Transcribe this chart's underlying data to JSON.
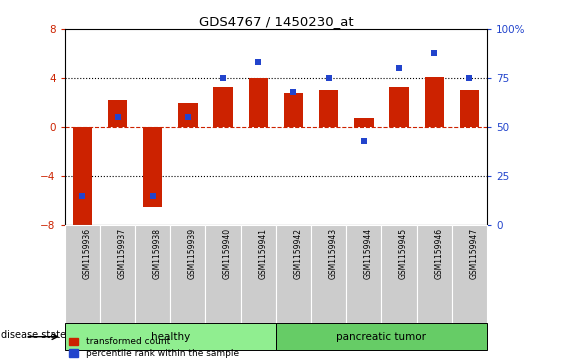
{
  "title": "GDS4767 / 1450230_at",
  "samples": [
    "GSM1159936",
    "GSM1159937",
    "GSM1159938",
    "GSM1159939",
    "GSM1159940",
    "GSM1159941",
    "GSM1159942",
    "GSM1159943",
    "GSM1159944",
    "GSM1159945",
    "GSM1159946",
    "GSM1159947"
  ],
  "red_values": [
    -8.5,
    2.2,
    -6.5,
    2.0,
    3.3,
    4.0,
    2.8,
    3.0,
    0.7,
    3.3,
    4.1,
    3.0
  ],
  "blue_values_pct": [
    15,
    55,
    15,
    55,
    75,
    83,
    68,
    75,
    43,
    80,
    88,
    75
  ],
  "groups": [
    {
      "label": "healthy",
      "start": 0,
      "end": 6,
      "color": "#90ee90"
    },
    {
      "label": "pancreatic tumor",
      "start": 6,
      "end": 12,
      "color": "#66cc66"
    }
  ],
  "ylim": [
    -8,
    8
  ],
  "y2lim": [
    0,
    100
  ],
  "y_ticks": [
    -8,
    -4,
    0,
    4,
    8
  ],
  "y2_ticks": [
    0,
    25,
    50,
    75,
    100
  ],
  "y2_tick_labels": [
    "0",
    "25",
    "50",
    "75",
    "100%"
  ],
  "red_color": "#cc2200",
  "blue_color": "#2244cc",
  "bar_width": 0.55,
  "bg_color": "#ffffff",
  "plot_bg": "#ffffff",
  "tick_label_bg": "#cccccc",
  "disease_state_label": "disease state",
  "legend_red": "transformed count",
  "legend_blue": "percentile rank within the sample",
  "hlines": [
    {
      "y": 0,
      "color": "#cc2200",
      "ls": "dashed",
      "lw": 0.8
    },
    {
      "y": 4,
      "color": "black",
      "ls": "dotted",
      "lw": 0.8
    },
    {
      "y": -4,
      "color": "black",
      "ls": "dotted",
      "lw": 0.8
    }
  ]
}
